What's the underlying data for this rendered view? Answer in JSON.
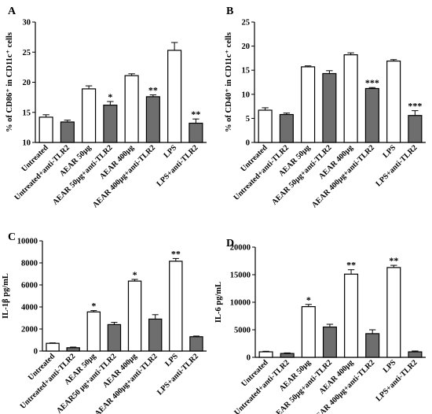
{
  "colors": {
    "open_bar": "#ffffff",
    "filled_bar": "#6e6e6e",
    "axis": "#000000"
  },
  "chart_data": [
    {
      "panel": "A",
      "type": "bar",
      "ylabel": "% of CD86⁺ in CD11c⁺ cells",
      "ylim": [
        10,
        30
      ],
      "yticks": [
        10,
        15,
        20,
        25,
        30
      ],
      "categories": [
        "Untreated",
        "Untreated+anti-TLR2",
        "AEAR 50μg",
        "AEAR 50μg+anti-TLR2",
        "AEAR 400μg",
        "AEAR 400μg+anti-TLR2",
        "LPS",
        "LPS+anti-TLR2"
      ],
      "values": [
        14.2,
        13.4,
        18.9,
        16.2,
        21.1,
        17.6,
        25.3,
        13.2
      ],
      "errors": [
        0.4,
        0.3,
        0.5,
        0.6,
        0.3,
        0.3,
        1.3,
        0.7
      ],
      "fill": [
        "open",
        "filled",
        "open",
        "filled",
        "open",
        "filled",
        "open",
        "filled"
      ],
      "annotations": [
        "",
        "",
        "",
        "*",
        "",
        "**",
        "",
        "**"
      ]
    },
    {
      "panel": "B",
      "type": "bar",
      "ylabel": "% of CD40⁺ in CD11c⁺ cells",
      "ylim": [
        0,
        25
      ],
      "yticks": [
        0,
        5,
        10,
        15,
        20,
        25
      ],
      "categories": [
        "Untreated",
        "Untreated+anti-TLR2",
        "AEAR 50μg",
        "AEAR 50μg+anti-TLR2",
        "AEAR 400μg",
        "AEAR 400μg+anti-TLR2",
        "LPS",
        "LPS+anti-TLR2"
      ],
      "values": [
        6.7,
        5.8,
        15.7,
        14.3,
        18.2,
        11.2,
        16.9,
        5.6
      ],
      "errors": [
        0.5,
        0.3,
        0.2,
        0.6,
        0.4,
        0.2,
        0.3,
        1.0
      ],
      "fill": [
        "open",
        "filled",
        "open",
        "filled",
        "open",
        "filled",
        "open",
        "filled"
      ],
      "annotations": [
        "",
        "",
        "",
        "",
        "",
        "***",
        "",
        "***"
      ]
    },
    {
      "panel": "C",
      "type": "bar",
      "ylabel": "IL-1β pg/mL",
      "ylim": [
        0,
        10000
      ],
      "yticks": [
        0,
        2000,
        4000,
        6000,
        8000,
        10000
      ],
      "categories": [
        "Untreated",
        "Untreated+anti-TLR2",
        "AEAR 50μg",
        "AEAR50 μg+anti-TLR2",
        "AEAR 400μg",
        "AEAR 400μg+anti-TLR2",
        "LPS",
        "LPS+anti-TLR2"
      ],
      "values": [
        700,
        300,
        3550,
        2400,
        6350,
        2900,
        8150,
        1300
      ],
      "errors": [
        40,
        60,
        120,
        200,
        150,
        400,
        250,
        60
      ],
      "fill": [
        "open",
        "filled",
        "open",
        "filled",
        "open",
        "filled",
        "open",
        "filled"
      ],
      "annotations": [
        "",
        "",
        "*",
        "",
        "*",
        "",
        "**",
        ""
      ]
    },
    {
      "panel": "D",
      "type": "bar",
      "ylabel": "IL-6 pg/mL",
      "ylim": [
        0,
        20000
      ],
      "yticks": [
        0,
        5000,
        10000,
        15000,
        20000
      ],
      "categories": [
        "Untreated",
        "Untreated+anti-TLR2",
        "AEAR 50μg",
        "AEAR 50μg+anti-TLR2",
        "AEAR 400μg",
        "AEAR 400μg+anti-TLR2",
        "LPS",
        "LPS+anti-TLR2"
      ],
      "values": [
        1000,
        700,
        9200,
        5500,
        15100,
        4300,
        16300,
        1000
      ],
      "errors": [
        100,
        100,
        400,
        500,
        800,
        700,
        400,
        150
      ],
      "fill": [
        "open",
        "filled",
        "open",
        "filled",
        "open",
        "filled",
        "open",
        "filled"
      ],
      "annotations": [
        "",
        "",
        "*",
        "",
        "**",
        "",
        "**",
        ""
      ]
    }
  ]
}
